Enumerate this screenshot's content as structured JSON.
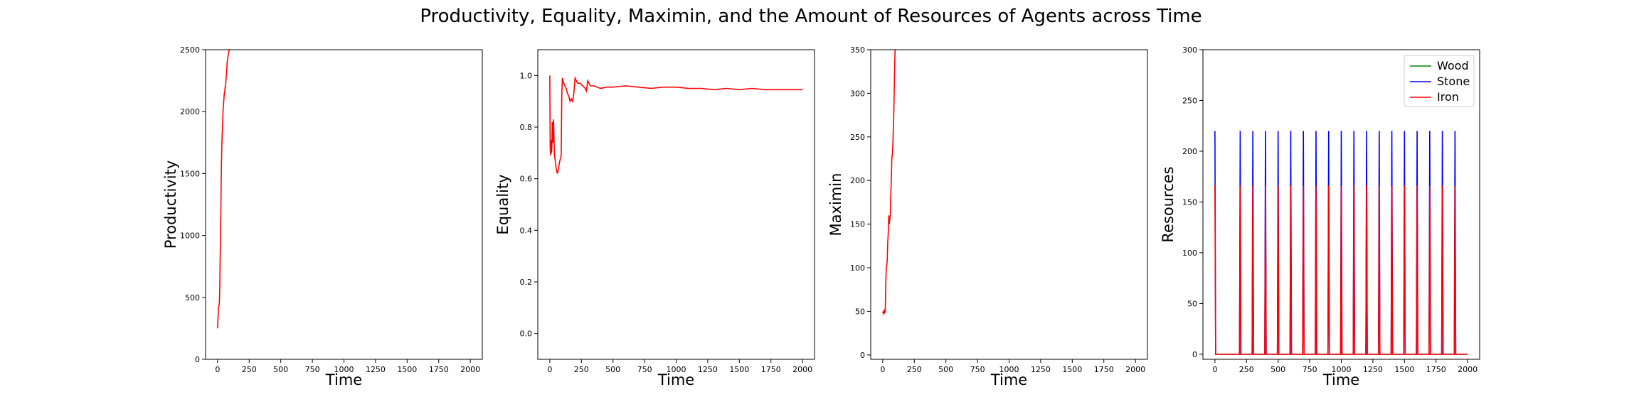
{
  "figure": {
    "title": "Productivity, Equality, Maximin, and the Amount of Resources of Agents across Time"
  },
  "chart_data": [
    {
      "type": "line",
      "xlabel": "Time",
      "ylabel": "Productivity",
      "xlim": [
        -95,
        2095
      ],
      "ylim": [
        0,
        2500
      ],
      "xticks": [
        0,
        250,
        500,
        750,
        1000,
        1250,
        1500,
        1750,
        2000
      ],
      "yticks": [
        0,
        500,
        1000,
        1500,
        2000,
        2500
      ],
      "grid": false,
      "series": [
        {
          "color": "#ff0000",
          "x": [
            0,
            3,
            6,
            8,
            10,
            12,
            15,
            18,
            20,
            23,
            26,
            28,
            30,
            33,
            36,
            40,
            43,
            46,
            50,
            53,
            56,
            60,
            63,
            66,
            70,
            73,
            76,
            80,
            83,
            86,
            90,
            95,
            100
          ],
          "y": [
            250,
            320,
            400,
            420,
            430,
            440,
            480,
            600,
            800,
            1000,
            1200,
            1400,
            1550,
            1700,
            1800,
            1900,
            2000,
            2050,
            2100,
            2150,
            2150,
            2200,
            2200,
            2250,
            2300,
            2350,
            2400,
            2420,
            2450,
            2470,
            2490,
            2500,
            2520
          ]
        }
      ]
    },
    {
      "type": "line",
      "xlabel": "Time",
      "ylabel": "Equality",
      "xlim": [
        -95,
        2095
      ],
      "ylim": [
        -0.1,
        1.1
      ],
      "xticks": [
        0,
        250,
        500,
        750,
        1000,
        1250,
        1500,
        1750,
        2000
      ],
      "yticks": [
        0.0,
        0.2,
        0.4,
        0.6,
        0.8,
        1.0
      ],
      "ytick_labels": [
        "0.0",
        "0.2",
        "0.4",
        "0.6",
        "0.8",
        "1.0"
      ],
      "grid": false,
      "series": [
        {
          "color": "#ff0000",
          "x": [
            0,
            3,
            6,
            10,
            13,
            16,
            20,
            23,
            26,
            30,
            33,
            36,
            40,
            43,
            46,
            50,
            55,
            60,
            65,
            70,
            75,
            80,
            85,
            90,
            95,
            100,
            110,
            120,
            130,
            140,
            150,
            160,
            170,
            180,
            190,
            200,
            210,
            220,
            240,
            260,
            280,
            290,
            300,
            320,
            350,
            400,
            450,
            500,
            600,
            700,
            800,
            900,
            1000,
            1100,
            1200,
            1300,
            1400,
            1500,
            1600,
            1700,
            1800,
            1900,
            2000
          ],
          "y": [
            1.0,
            0.72,
            0.69,
            0.75,
            0.7,
            0.72,
            0.82,
            0.78,
            0.74,
            0.83,
            0.76,
            0.7,
            0.68,
            0.67,
            0.66,
            0.64,
            0.63,
            0.62,
            0.63,
            0.64,
            0.66,
            0.67,
            0.68,
            0.69,
            0.93,
            0.99,
            0.97,
            0.96,
            0.95,
            0.93,
            0.92,
            0.9,
            0.91,
            0.9,
            0.93,
            0.99,
            0.98,
            0.97,
            0.97,
            0.96,
            0.95,
            0.94,
            0.98,
            0.96,
            0.96,
            0.95,
            0.955,
            0.955,
            0.96,
            0.955,
            0.95,
            0.955,
            0.955,
            0.95,
            0.95,
            0.945,
            0.95,
            0.945,
            0.95,
            0.945,
            0.945,
            0.945,
            0.945
          ]
        }
      ]
    },
    {
      "type": "line",
      "xlabel": "Time",
      "ylabel": "Maximin",
      "xlim": [
        -95,
        2095
      ],
      "ylim": [
        -5,
        350
      ],
      "xticks": [
        0,
        250,
        500,
        750,
        1000,
        1250,
        1500,
        1750,
        2000
      ],
      "yticks": [
        0,
        50,
        100,
        150,
        200,
        250,
        300,
        350
      ],
      "grid": false,
      "series": [
        {
          "color": "#ff0000",
          "x": [
            0,
            4,
            8,
            12,
            16,
            20,
            24,
            28,
            32,
            36,
            40,
            44,
            48,
            52,
            56,
            60,
            64,
            68,
            72,
            76,
            80,
            84,
            88,
            92,
            96,
            100
          ],
          "y": [
            48,
            50,
            46,
            52,
            48,
            50,
            80,
            100,
            102,
            110,
            130,
            140,
            160,
            150,
            155,
            160,
            185,
            200,
            225,
            230,
            240,
            260,
            280,
            310,
            340,
            360
          ]
        }
      ]
    },
    {
      "type": "line",
      "xlabel": "Time",
      "ylabel": "Resources",
      "xlim": [
        -95,
        2095
      ],
      "ylim": [
        -5,
        300
      ],
      "xticks": [
        0,
        250,
        500,
        750,
        1000,
        1250,
        1500,
        1750,
        2000
      ],
      "yticks": [
        0,
        50,
        100,
        150,
        200,
        250,
        300
      ],
      "grid": false,
      "legend": "top-right",
      "spike_times": [
        0,
        200,
        300,
        400,
        500,
        600,
        700,
        800,
        900,
        1000,
        1100,
        1200,
        1300,
        1400,
        1500,
        1600,
        1700,
        1800,
        1900
      ],
      "x_end": 2000,
      "series": [
        {
          "name": "Wood",
          "color": "#008000",
          "base": 0,
          "spike": 0
        },
        {
          "name": "Stone",
          "color": "#0000ff",
          "base": 0,
          "spike": 220
        },
        {
          "name": "Iron",
          "color": "#ff0000",
          "base": 0,
          "spike": 166
        }
      ]
    }
  ]
}
